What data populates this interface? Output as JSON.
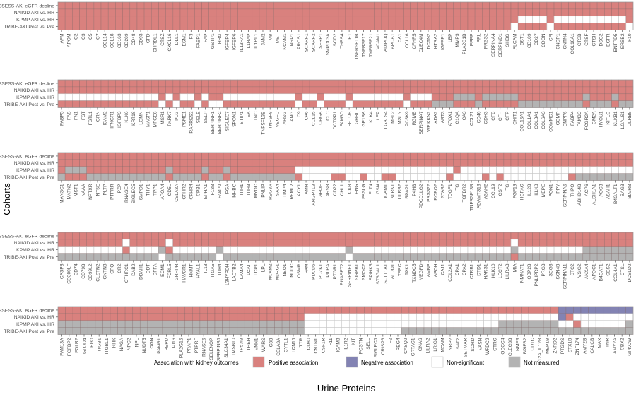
{
  "chart_data": {
    "type": "heatmap",
    "xlabel": "Urine Proteins",
    "ylabel": "Cohorts",
    "cohorts": [
      "ASSESS-AKI eGFR decline",
      "NAIKID AKI vs. HR",
      "KPMP AKI vs. HR",
      "TRIBE-AKI Post vs. Pre"
    ],
    "legend": {
      "title": "Association with kidney outcomes",
      "position": "bottom",
      "items": [
        {
          "code": "P",
          "label": "Positive association",
          "color": "#d9817e"
        },
        {
          "code": "N",
          "label": "Negative association",
          "color": "#8383b3"
        },
        {
          "code": "W",
          "label": "Non-significant",
          "color": "#ffffff"
        },
        {
          "code": "G",
          "label": "Not measured",
          "color": "#b3b3b3"
        }
      ]
    },
    "panels": [
      {
        "proteins": [
          "AFM",
          "APOM",
          "C2",
          "C3",
          "C5",
          "C7",
          "CCL14",
          "CCL18",
          "CD163",
          "CD209",
          "CD48",
          "CD93",
          "CFD",
          "CHRDL1",
          "CTSZ",
          "CXCL16",
          "DLL1",
          "ESM1",
          "F3",
          "FABP1",
          "FAP",
          "GSTP1",
          "HRG",
          "IGFBP4",
          "IGFBP6",
          "IL13RA1",
          "IL1RAP",
          "IL1RL1",
          "JAM2",
          "MB",
          "MET",
          "NCAM1",
          "NRP1",
          "PROS1",
          "SCARF1",
          "SCARF2",
          "SFRP1",
          "SMPDL3A",
          "SOD2",
          "THBS4",
          "TIE1",
          "TNFRSF11B",
          "TNFRSF17",
          "TNFRSF21",
          "VCAM1",
          "ADIPOQ",
          "APOA1",
          "CA1",
          "CCL16",
          "CFHR5",
          "CLEC4M",
          "DCTN2",
          "HTRA2",
          "IGFBP1",
          "LBP",
          "MMP3",
          "PLA2G1B",
          "PPBP",
          "PRL",
          "PRSS2",
          "SERPINA4",
          "SERPIND1",
          "SHBG",
          "ALCAM",
          "BST1",
          "CD109",
          "CD27",
          "CDON",
          "CFI",
          "CNDP1",
          "CNTN4",
          "COL18A1",
          "CTSB",
          "CTSF",
          "CTSH",
          "DSG2",
          "EGFR",
          "ENTPD5",
          "ERBB2",
          "F10"
        ],
        "cells": [
          "PPPPPPPPPPPPPPPPPPPPPPPPPPPPPPPPPPPPPPPPPPPPPPPPPPPPPPPPPPPPPPPPPPPPPPPPPPPPPPPP",
          "PPPPPPPPPPPPPPPPPPPPPPPPPPPPPPPPPPPPPPPPPPPPPPPPPPPPPPPPPPPPPPPPPPPPPPPPPPPPPPPP",
          "PPPPPPPPPPPPPPPPPPPPPPPPPPPPPPPPPPPPPPPPPPPPPPPPPPPPPPPPPPPPPPPPWWWWPWWWWWWWWWWP",
          "PPPPPPPPPPPPPPPPPPPPPPPPPPPPPPPPPPPPPPPPPPPPPPPPPPPPPPPPPPPPPPPWPPPPWPPPPPPPPPPW"
        ]
      },
      {
        "proteins": [
          "FABP5",
          "FAS",
          "FN1",
          "FST",
          "FSTL1",
          "GRN",
          "ICAM2",
          "IFNGR1",
          "IGFBP3",
          "KLK6",
          "KRT18",
          "LGMN",
          "MASP1",
          "MFGE8",
          "MSR1",
          "PARK7",
          "PLG",
          "PSME1",
          "RARRES2",
          "SELE",
          "SELP",
          "SERPINF1",
          "SERPINF2",
          "SIGLEC7",
          "SPON1",
          "STIP1",
          "TEK",
          "TNC",
          "TNFSF13B",
          "TNFSF8",
          "VEGFC",
          "AHSG",
          "ANG",
          "C9",
          "CA6",
          "CCL15",
          "CHGA",
          "CLC",
          "DCTPP1",
          "FAM3D",
          "FETUB",
          "GHRL",
          "GP1BA",
          "KLK4",
          "LEP",
          "LGALS4",
          "MBL2",
          "MSLN",
          "PCSK9",
          "RGMB",
          "SERPINA7",
          "WFIKKN2",
          "ADA2",
          "ART3",
          "ATOX1",
          "C1QA",
          "CA3",
          "CCL21",
          "CD46",
          "CDH3",
          "CFB",
          "CFH",
          "CFP",
          "CHIT1",
          "COL15A1",
          "COL1A1",
          "COL3A1",
          "COL6A3",
          "COMMD1",
          "COMP",
          "ENPP6",
          "FABP4",
          "FAM3C",
          "FCGR2A",
          "GM2A",
          "HYOU1",
          "KITLG",
          "KLKB1",
          "LGALS1",
          "LILRB5"
        ],
        "cells": [
          "PPPPPPPPPPPPPPPPPPPPPPPPPPPPPPPPPPPPPPPPPPPPPPPPPPPPPPPPPPPPPPPPPPPPPPPPPPPPPPPP",
          "PPPPPPPPPPPPPPPPPPPPPPPPPPPPPPPPPPPPPPPPPPPPPPPPPPPPPPPPPPPPPPPPPPPPPPPPPPPPPPPP",
          "WWWWWWWWWWWWWWPWPWWPWPPWWWWWWWWWWPWWPWWWPWWWWWWWPWWWPPPGGGPGGGGGPPPPPPPPPGPPPGPP",
          "PPPPPPPPPPPPPPWPWPPWPWWPPPPPPPPPPWPPWPPPWPPPPPPPWPPPGGGPPPGPPPPPGGGGGGGGGPGGGPGG"
        ]
      },
      {
        "proteins": [
          "MANSC1",
          "MATN2",
          "MST1",
          "NAAA",
          "NPTXR",
          "NT5E",
          "PLTP",
          "PTPRR",
          "PZP",
          "RNASE4",
          "SIGLEC5",
          "SMPD1",
          "THY1",
          "TPP1",
          "APOA4",
          "CD5L",
          "CELA3A",
          "CFHR2",
          "CFHR4",
          "CPB1",
          "EPHA1",
          "F13B",
          "FABP2",
          "FGA",
          "INHBC",
          "ITIH1",
          "ITIH3",
          "MYOC",
          "PNLIP",
          "REG3A",
          "SAA4",
          "TIMP4",
          "TREML2",
          "ACY1",
          "AMN",
          "ANGPTL3",
          "APOE",
          "ARSB",
          "CD22",
          "CHL1",
          "CKB",
          "ENG",
          "FASLG",
          "FLT4",
          "GSN",
          "ICAM1",
          "KLRK1",
          "LILRB2",
          "LRPAP1",
          "P4HB",
          "PDCD1LG2",
          "PRSS22",
          "ROBO2",
          "STAB2",
          "TDGF1",
          "TG",
          "TGFBR2",
          "TNFRSF13B",
          "ADAMTS13",
          "ASAH2",
          "CCL19",
          "CSF2",
          "TG",
          "FGF19",
          "HGFAC",
          "IL12B",
          "KLK8",
          "MEPE",
          "PON1",
          "PPY",
          "SERPINA6",
          "THPO",
          "ABHD14B",
          "ACP6",
          "ALDH1A1",
          "AOC3",
          "ASAH1",
          "B4GALT1",
          "BAG3",
          "BLVRB"
        ],
        "cells": [
          "PPPPPPPPPPPPPPPPPPPPPPPPPPPPPPPPPPPPPPPPPPPPPPPPPPPPPPPPPPPPPPPPPPPPPPPPPPPPPPPP",
          "PPPPPPPPPPPPPPPPPPPPPPPPPPPPPPPPPPPPPPPPPPPPPPPPPPPPPPPPPPPPPPPPPPPPPPPPPPPPPPPP",
          "PGGGPPPPPPPPPPPGPPPPGPPGPPPPPPPPPWWWWWWWWWWWWWWWWWWWWWWPWWWWWWWWWWWWWWWWWWWWWWWW",
          "GPPPGGGGGGGGGGGPGGGGPGGPGGGGGGGGGPWWWWPPWWPWWPPWWWWWWWPWWWWPWPWWWWWWWWWPGGGGGGGG"
        ]
      },
      {
        "proteins": [
          "CASP8",
          "CD300LF",
          "CD74",
          "CD79B",
          "CD99L2",
          "CLSTN2",
          "CNTN3",
          "CPQ",
          "CR2",
          "CTHRC1",
          "DAB2",
          "DDAH1",
          "DDT",
          "DFFA",
          "ECM1",
          "FCRL5",
          "GRHPR",
          "HAVCR1",
          "HNMT",
          "HYAL1",
          "IL18",
          "ITGA5",
          "ITIH4",
          "L3HYPDH",
          "LACTB2",
          "LAMA4",
          "LCAT",
          "LCP1",
          "LPL",
          "NCAM2",
          "NDRG1",
          "NEO1",
          "NUDC",
          "OSMR",
          "PAM",
          "PDCD5",
          "PDZK1",
          "PILRA",
          "PTGR1",
          "RNASET2",
          "SERPINE1",
          "SIRPB1",
          "SMOC2",
          "SPINK5",
          "ST6GAL1",
          "SULT1A1",
          "TALDO1",
          "TFRC",
          "TPK1",
          "TXNDC5",
          "VEGFD",
          "AMBP",
          "APOH",
          "CA11",
          "COL2A1",
          "CPA1",
          "CPA2",
          "CTRB1",
          "DTD1",
          "HARS1",
          "KLK10",
          "LECT2",
          "LILRA3",
          "MIA",
          "NMNAT1",
          "OBP2B",
          "PNLIPRP2",
          "PRG3",
          "SCG3",
          "SCN4B",
          "SERPINA11",
          "STC2",
          "VSIG2",
          "ANXA4",
          "APOC1",
          "B4GAT1",
          "CES2",
          "COL4A1",
          "CTSL",
          "DCBLD2"
        ],
        "cells": [
          "PPPPPPPPPPPPPPPPPPPPPPPPPPPPPPPPPPPPPPPPPPPPPPPPPPPPPPPPPPPPPPPPPPPPPPPPPPPPPPPP",
          "PPPPPPPPPWPPPPPWPPPPPPPPPPPPPPPPPPPPPPPPPPPPPPPPPPPPPPPPPPPPPPPWPPPPPPPPPPPPPPPP",
          "WWWWWWWWWPWWWWGPWWWWWWGWWWWWWWWWWWWWWWWWGWWWWWWWWWWWWWWWWWWWWWWGWWWWWWWWWGGGGGGG",
          "GGGGGGGGGGGGGGWGGGGGGGWGGGGGGGGGGGGGGGGGWGGGGGGGGGGGGGGGGGGGGGGPGGGGGGGGGGGGGGGG"
        ]
      },
      {
        "proteins": [
          "FAM13A",
          "FGFBP2",
          "FOLR2",
          "GLOD4",
          "IFI30",
          "ITGB1",
          "ITGBL1",
          "KHK",
          "NAGA",
          "NPC2",
          "NPL",
          "NUDT5",
          "OGN",
          "PAMR1",
          "PEPD",
          "PI16",
          "PLA2G15",
          "PRAP1",
          "PTPRF",
          "RNASE6",
          "SELENOP",
          "SERPINB6",
          "SLC34A1",
          "TMSB10",
          "TP53I3",
          "TREH",
          "VNN1",
          "WARS",
          "C8B",
          "CELA3A",
          "CYTL1",
          "LCN15",
          "TTR",
          "CD80",
          "CNTN1",
          "CSF1R",
          "F11",
          "ICAM3",
          "IL1R2",
          "KIT",
          "POSTN",
          "SELL",
          "SIGLEC6",
          "CRISP3",
          "F2",
          "REG4",
          "CASQ2",
          "CRTAC1",
          "GNAS",
          "LILRA2",
          "LRIG1",
          "MCAM",
          "NRP2",
          "SAT2",
          "SETMAR",
          "SORD",
          "VASN",
          "WFDC2",
          "CTRC",
          "IGDCC4",
          "CLEC3B",
          "NME3",
          "BPIFB2",
          "CD1C",
          "IL12A_IL12B",
          "MEP1B",
          "ZNRD2",
          "PTGDS",
          "STX1B",
          "ZNF174",
          "AMY2B",
          "CALCB",
          "MAX",
          "TNR",
          "AMY2A",
          "CBX2",
          "GPKOW"
        ],
        "cells": [
          "PPPPPPPPPPPPPPPPPPPPPPPPPPPPPPPPPPPPPPPPPPPPPPPPPPPPPPPPPPPPPPPPPPPNNNNNNNNNN",
          "PPPPPPPPPPPPPPPPPPPPPPPPPPPPPPPPPWWWWWWWWWWWWWWWWWWWWWWWWWWWWWWWWWWNPWWWWWWWW",
          "GGGGGGGGGGGGGGGGGGGGGGGGGGGGGGGGGWWWWWWWWWWWWWWWWWWWWWWWWWWGGGGGGGGWWPWWWWWWG",
          "GGGGGGGGGGGGGGGGGGGGGGGGGGGGGGGGGWWWWWWWWWWWWWGGGGGGGGGGGGGGGGGGGGGGGGGGGGGGG"
        ]
      }
    ]
  }
}
